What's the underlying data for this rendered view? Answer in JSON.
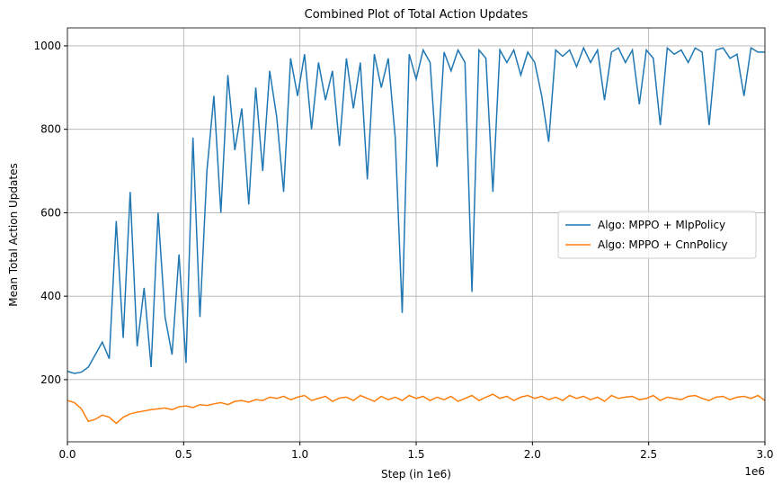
{
  "chart_data": {
    "type": "line",
    "title": "Combined Plot of Total Action Updates",
    "x_label": "Step (in 1e6)",
    "y_label": "Mean Total Action Updates",
    "x_offset_label": "1e6",
    "x": [
      0,
      0.03,
      0.06,
      0.09,
      0.12,
      0.15,
      0.18,
      0.21,
      0.24,
      0.27,
      0.3,
      0.33,
      0.36,
      0.39,
      0.42,
      0.45,
      0.48,
      0.51,
      0.54,
      0.57,
      0.6,
      0.63,
      0.66,
      0.69,
      0.72,
      0.75,
      0.78,
      0.81,
      0.84,
      0.87,
      0.9,
      0.93,
      0.96,
      0.99,
      1.02,
      1.05,
      1.08,
      1.11,
      1.14,
      1.17,
      1.2,
      1.23,
      1.26,
      1.29,
      1.32,
      1.35,
      1.38,
      1.41,
      1.44,
      1.47,
      1.5,
      1.53,
      1.56,
      1.59,
      1.62,
      1.65,
      1.68,
      1.71,
      1.74,
      1.77,
      1.8,
      1.83,
      1.86,
      1.89,
      1.92,
      1.95,
      1.98,
      2.01,
      2.04,
      2.07,
      2.1,
      2.13,
      2.16,
      2.19,
      2.22,
      2.25,
      2.28,
      2.31,
      2.34,
      2.37,
      2.4,
      2.43,
      2.46,
      2.49,
      2.52,
      2.55,
      2.58,
      2.61,
      2.64,
      2.67,
      2.7,
      2.73,
      2.76,
      2.79,
      2.82,
      2.85,
      2.88,
      2.91,
      2.94,
      2.97,
      3.0
    ],
    "series": [
      {
        "name": "Algo: MPPO + MlpPolicy",
        "color": "#1f77b4",
        "values": [
          220,
          215,
          218,
          230,
          260,
          290,
          250,
          580,
          300,
          650,
          280,
          420,
          230,
          600,
          350,
          260,
          500,
          240,
          780,
          350,
          700,
          880,
          600,
          930,
          750,
          850,
          620,
          900,
          700,
          940,
          830,
          650,
          970,
          880,
          980,
          800,
          960,
          870,
          940,
          760,
          970,
          850,
          960,
          680,
          980,
          900,
          970,
          780,
          360,
          980,
          920,
          990,
          960,
          710,
          985,
          940,
          990,
          960,
          410,
          990,
          970,
          650,
          990,
          960,
          990,
          930,
          985,
          960,
          880,
          770,
          990,
          975,
          990,
          950,
          995,
          960,
          990,
          870,
          985,
          995,
          960,
          990,
          860,
          990,
          970,
          810,
          995,
          980,
          990,
          960,
          995,
          985,
          810,
          990,
          995,
          970,
          980,
          880,
          995,
          985,
          985
        ]
      },
      {
        "name": "Algo: MPPO + CnnPolicy",
        "color": "#ff7f0e",
        "values": [
          150,
          145,
          130,
          100,
          105,
          115,
          110,
          95,
          110,
          118,
          122,
          125,
          128,
          130,
          132,
          128,
          135,
          137,
          133,
          140,
          138,
          142,
          145,
          140,
          148,
          150,
          146,
          152,
          150,
          158,
          155,
          160,
          152,
          158,
          162,
          150,
          155,
          160,
          148,
          156,
          158,
          150,
          162,
          155,
          148,
          160,
          152,
          158,
          150,
          162,
          155,
          160,
          150,
          158,
          152,
          160,
          148,
          155,
          162,
          150,
          158,
          165,
          155,
          160,
          150,
          158,
          162,
          155,
          160,
          152,
          158,
          150,
          162,
          155,
          160,
          152,
          158,
          148,
          162,
          155,
          158,
          160,
          152,
          155,
          162,
          150,
          158,
          155,
          152,
          160,
          162,
          155,
          150,
          158,
          160,
          152,
          158,
          160,
          155,
          162,
          150
        ]
      }
    ],
    "xlim": [
      0,
      3
    ],
    "ylim": [
      51,
      1043
    ],
    "xticks": [
      {
        "value": 0,
        "label": "0.0"
      },
      0.5,
      {
        "value": 1,
        "label": "1.0"
      },
      1.5,
      {
        "value": 2,
        "label": "2.0"
      },
      2.5,
      {
        "value": 3,
        "label": "3.0"
      }
    ],
    "yticks": [
      200,
      400,
      600,
      800,
      1000
    ],
    "grid": true,
    "legend": "center right"
  }
}
